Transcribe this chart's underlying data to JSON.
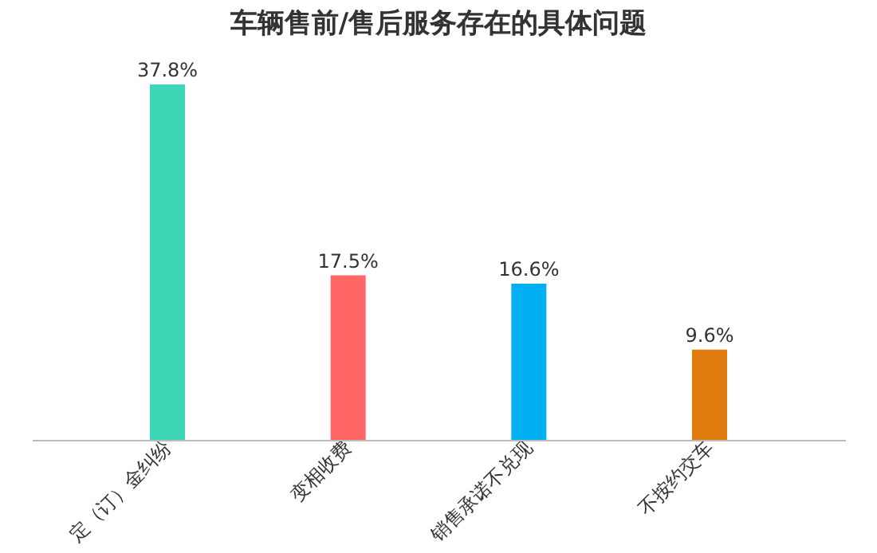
{
  "chart_data": {
    "type": "bar",
    "title": "车辆售前/售后服务存在的具体问题",
    "categories": [
      "定（订）金纠纷",
      "变相收费",
      "销售承诺不兑现",
      "不按约交车"
    ],
    "values": [
      37.8,
      17.5,
      16.6,
      9.6
    ],
    "value_labels": [
      "37.8%",
      "17.5%",
      "16.6%",
      "9.6%"
    ],
    "colors": [
      "#3dd6b6",
      "#ff6666",
      "#00b0f0",
      "#e07b10"
    ],
    "grid": false,
    "legend": false
  }
}
